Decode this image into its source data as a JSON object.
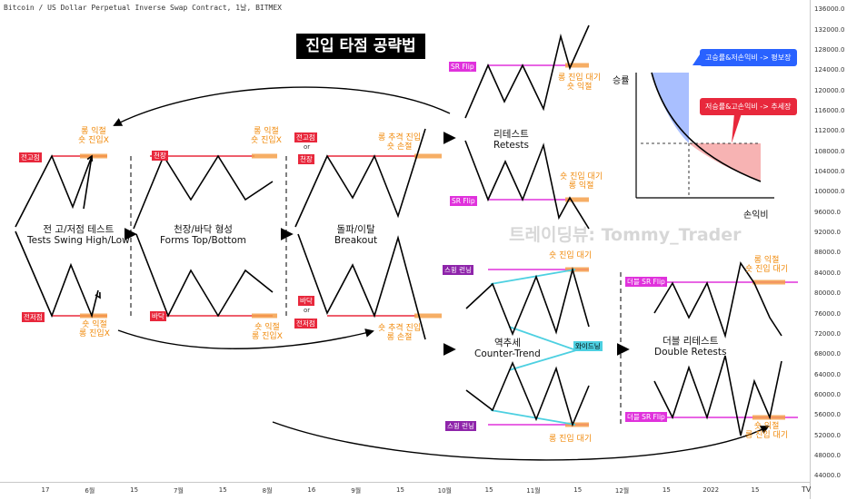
{
  "header": {
    "title": "Bitcoin / US Dollar Perpetual Inverse Swap Contract, 1날, BITMEX"
  },
  "banner": {
    "title": "진입 타점 공략법"
  },
  "watermark": "트레이딩뷰: Tommy_Trader",
  "colors": {
    "resistance": "#e8283c",
    "zone": "#f5a04a",
    "sr_flip": "#e032dc",
    "wedge": "#4dd0e1",
    "callout_blue": "#2962ff",
    "callout_red": "#e8283c"
  },
  "patterns": {
    "swing_test": {
      "title_ko": "전 고/저점 테스트",
      "title_en": "Tests Swing High/Low",
      "top_tag": "전고점",
      "bottom_tag": "전저점",
      "top_note": [
        "롱 익절",
        "숏 진입X"
      ],
      "bottom_note": [
        "숏 익절",
        "롱 진입X"
      ]
    },
    "forms_top_bottom": {
      "title_ko": "천장/바닥 형성",
      "title_en": "Forms Top/Bottom",
      "top_tag": "천장",
      "bottom_tag": "바닥",
      "top_note": [
        "롱 익절",
        "숏 진입X"
      ],
      "bottom_note": [
        "숏 익절",
        "롱 진입X"
      ]
    },
    "breakout": {
      "title_ko": "돌파/이탈",
      "title_en": "Breakout",
      "top_tags": [
        "전고점",
        "천장"
      ],
      "bottom_tags": [
        "바닥",
        "전저점"
      ],
      "or_text": "or",
      "top_note": [
        "롱 추격 진입",
        "숏 손절"
      ],
      "bottom_note": [
        "숏 추격 진입",
        "롱 손절"
      ]
    },
    "retest": {
      "title_ko": "리테스트",
      "title_en": "Retests",
      "flip_tag": "SR Flip",
      "top_note": [
        "롱 진입 대기",
        "숏 익절"
      ],
      "bottom_note": [
        "숏 진입 대기",
        "롱 익절"
      ]
    },
    "counter_trend": {
      "title_ko": "역추세",
      "title_en": "Counter-Trend",
      "top_tag": "스윙 런닝",
      "bottom_tag": "스윙 런닝",
      "wedge_tag": "와이드닝",
      "top_note": "숏 진입 대기",
      "bottom_note": "롱 진입 대기"
    },
    "double_retest": {
      "title_ko": "더블 리테스트",
      "title_en": "Double Retests",
      "top_tag": "더블 SR Flip",
      "bottom_tag": "더블 SR Flip",
      "top_note": [
        "롱 익절",
        "숏 진입 대기"
      ],
      "bottom_note": [
        "숏 익절",
        "롱 진입 대기"
      ]
    }
  },
  "risk_reward": {
    "ylabel": "승률",
    "xlabel": "손익비",
    "callout_blue": "고승률&저손익비 -> 평보장",
    "callout_red": "저승률&고손익비 -> 추세장"
  },
  "chart_data": {
    "type": "line",
    "title": "Bitcoin / US Dollar Perpetual Inverse Swap Contract, 1날, BITMEX",
    "price_axis": {
      "side": "right",
      "ticks": [
        136000,
        132000,
        128000,
        124000,
        120000,
        116000,
        112000,
        108000,
        104000,
        100000,
        96000,
        92000,
        88000,
        84000,
        80000,
        76000,
        72000,
        68000,
        64000,
        60000,
        56000,
        52000,
        48000,
        44000
      ],
      "tick_labels": [
        "136000.0",
        "132000.0",
        "128000.0",
        "124000.0",
        "120000.0",
        "116000.0",
        "112000.0",
        "108000.0",
        "104000.0",
        "100000.0",
        "96000.0",
        "92000.0",
        "88000.0",
        "84000.0",
        "80000.0",
        "76000.0",
        "72000.0",
        "68000.0",
        "64000.0",
        "60000.0",
        "56000.0",
        "52000.0",
        "48000.0",
        "44000.0"
      ],
      "ylim": [
        43000,
        138000
      ]
    },
    "time_axis": {
      "ticks": [
        0,
        1,
        2,
        3,
        4,
        5,
        6,
        7,
        8,
        9,
        10,
        11,
        12,
        13,
        14,
        15,
        16
      ],
      "tick_labels": [
        "17",
        "6월",
        "15",
        "7월",
        "15",
        "8월",
        "16",
        "9월",
        "15",
        "10월",
        "15",
        "11월",
        "15",
        "12월",
        "15",
        "2022",
        "15"
      ]
    },
    "series": [],
    "grid": false
  }
}
